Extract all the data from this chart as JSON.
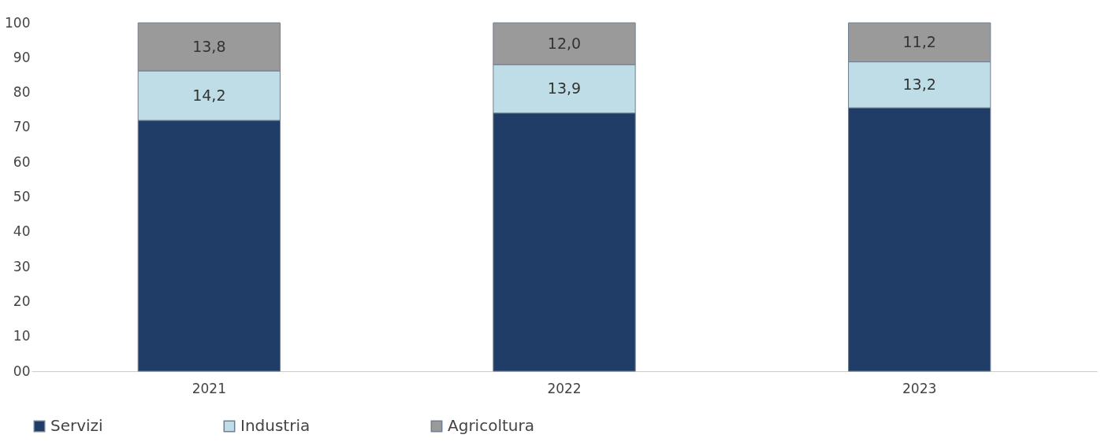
{
  "chart_data": {
    "type": "bar",
    "stacked": true,
    "categories": [
      "2021",
      "2022",
      "2023"
    ],
    "series": [
      {
        "name": "Servizi",
        "color": "#1f3d66",
        "values": [
          72.0,
          74.1,
          75.6
        ],
        "value_labels": [
          null,
          null,
          null
        ]
      },
      {
        "name": "Industria",
        "color": "#bfdde6",
        "values": [
          14.2,
          13.9,
          13.2
        ],
        "value_labels": [
          "14,2",
          "13,9",
          "13,2"
        ]
      },
      {
        "name": "Agricoltura",
        "color": "#9a9a9a",
        "values": [
          13.8,
          12.0,
          11.2
        ],
        "value_labels": [
          "13,8",
          "12,0",
          "11,2"
        ]
      }
    ],
    "ylim": [
      0,
      100
    ],
    "yticks": [
      {
        "value": 0,
        "label": "00"
      },
      10,
      20,
      30,
      40,
      50,
      60,
      70,
      80,
      90,
      100
    ],
    "grid": false,
    "legend": "bottom"
  }
}
